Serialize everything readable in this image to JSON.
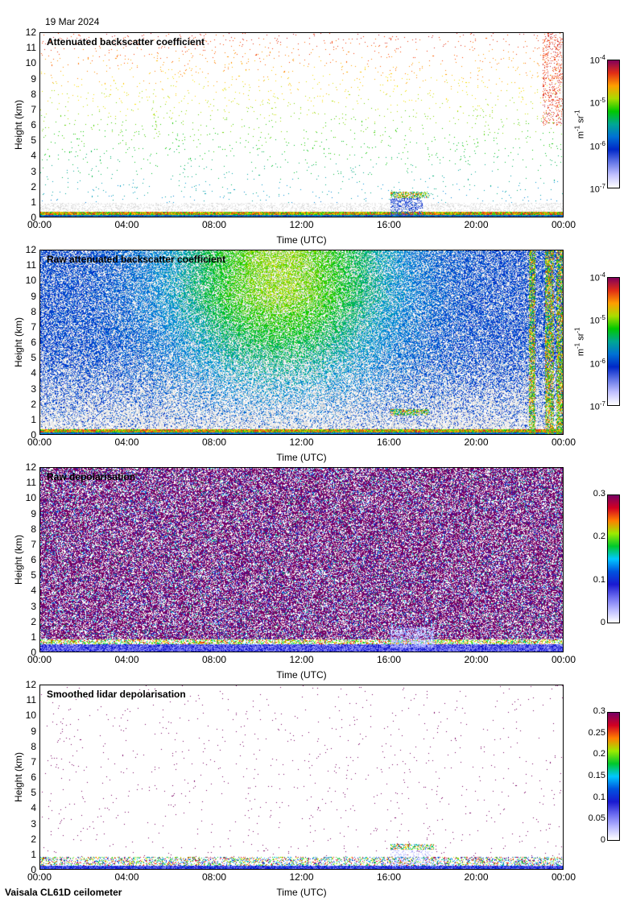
{
  "date": "19 Mar 2024",
  "footer": "Vaisala CL61D ceilometer",
  "xlabel": "Time (UTC)",
  "ylabel": "Height (km)",
  "xticks": [
    "00:00",
    "04:00",
    "08:00",
    "12:00",
    "16:00",
    "20:00",
    "00:00"
  ],
  "yticks": [
    "0",
    "1",
    "2",
    "3",
    "4",
    "5",
    "6",
    "7",
    "8",
    "9",
    "10",
    "11",
    "12"
  ],
  "colormap": [
    "#ffffff",
    "#0000c8",
    "#00c8ff",
    "#00c800",
    "#ffff00",
    "#ff8000",
    "#ff0000",
    "#800080"
  ],
  "chart_data": [
    {
      "type": "heatmap",
      "title": "Attenuated backscatter coefficient",
      "xlabel": "Time (UTC)",
      "ylabel": "Height (km)",
      "xlim": [
        0,
        24
      ],
      "ylim": [
        0,
        12
      ],
      "colorbar": {
        "scale": "log",
        "range": [
          1e-07,
          0.0001
        ],
        "ticks": [
          "10-7",
          "10-6",
          "10-5",
          "10-4"
        ],
        "unit": "m-1 sr-1"
      },
      "features": {
        "aerosol_layer_top_km": 0.5,
        "cloud_layer_km": [
          1.4,
          1.7
        ],
        "cloud_time_h": [
          16.0,
          17.8
        ]
      }
    },
    {
      "type": "heatmap",
      "title": "Raw attenuated backscatter coefficient",
      "xlabel": "Time (UTC)",
      "ylabel": "Height (km)",
      "xlim": [
        0,
        24
      ],
      "ylim": [
        0,
        12
      ],
      "colorbar": {
        "scale": "log",
        "range": [
          1e-07,
          0.0001
        ],
        "ticks": [
          "10-7",
          "10-6",
          "10-5",
          "10-4"
        ],
        "unit": "m-1 sr-1"
      }
    },
    {
      "type": "heatmap",
      "title": "Raw depolarisation",
      "xlabel": "Time (UTC)",
      "ylabel": "Height (km)",
      "xlim": [
        0,
        24
      ],
      "ylim": [
        0,
        12
      ],
      "colorbar": {
        "scale": "linear",
        "range": [
          0,
          0.3
        ],
        "ticks": [
          "0",
          "0.1",
          "0.2",
          "0.3"
        ]
      }
    },
    {
      "type": "heatmap",
      "title": "Smoothed lidar depolarisation",
      "xlabel": "Time (UTC)",
      "ylabel": "Height (km)",
      "xlim": [
        0,
        24
      ],
      "ylim": [
        0,
        12
      ],
      "colorbar": {
        "scale": "linear",
        "range": [
          0,
          0.3
        ],
        "ticks": [
          "0",
          "0.05",
          "0.1",
          "0.15",
          "0.2",
          "0.25",
          "0.3"
        ]
      }
    }
  ]
}
